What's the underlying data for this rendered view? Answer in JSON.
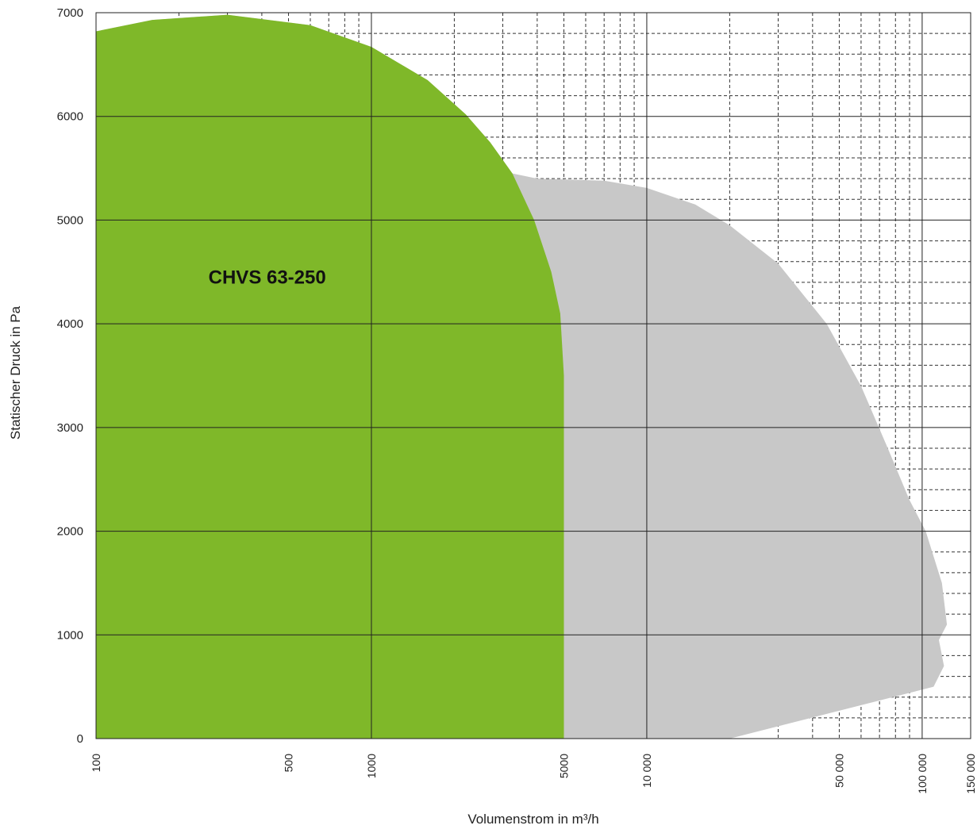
{
  "chart_data": {
    "type": "area",
    "xlabel": "Volumenstrom in m³/h",
    "ylabel": "Statischer Druck in Pa",
    "x_scale": "log",
    "xlim": [
      100,
      150000
    ],
    "ylim": [
      0,
      7000
    ],
    "grid": true,
    "y_ticks": [
      {
        "value": 0,
        "label": "0"
      },
      {
        "value": 1000,
        "label": "1000"
      },
      {
        "value": 2000,
        "label": "2000"
      },
      {
        "value": 3000,
        "label": "3000"
      },
      {
        "value": 4000,
        "label": "4000"
      },
      {
        "value": 5000,
        "label": "5000"
      },
      {
        "value": 6000,
        "label": "6000"
      },
      {
        "value": 7000,
        "label": "7000"
      }
    ],
    "x_ticks": [
      {
        "value": 100,
        "label": "100"
      },
      {
        "value": 500,
        "label": "500"
      },
      {
        "value": 1000,
        "label": "1000"
      },
      {
        "value": 5000,
        "label": "5000"
      },
      {
        "value": 10000,
        "label": "10 000"
      },
      {
        "value": 50000,
        "label": "50 000"
      },
      {
        "value": 100000,
        "label": "100 000"
      },
      {
        "value": 150000,
        "label": "150 000"
      }
    ],
    "series": [
      {
        "color": "#c8c8c8",
        "points": [
          [
            100,
            6820
          ],
          [
            160,
            6930
          ],
          [
            300,
            6980
          ],
          [
            600,
            6880
          ],
          [
            1000,
            6670
          ],
          [
            1600,
            6350
          ],
          [
            2200,
            6020
          ],
          [
            2700,
            5750
          ],
          [
            3250,
            5450
          ],
          [
            4000,
            5400
          ],
          [
            7000,
            5380
          ],
          [
            10000,
            5310
          ],
          [
            15000,
            5150
          ],
          [
            20000,
            4950
          ],
          [
            30000,
            4580
          ],
          [
            45000,
            4000
          ],
          [
            60000,
            3400
          ],
          [
            75000,
            2800
          ],
          [
            90000,
            2300
          ],
          [
            103000,
            2000
          ],
          [
            118000,
            1500
          ],
          [
            123000,
            1100
          ],
          [
            115000,
            950
          ],
          [
            120000,
            700
          ],
          [
            110000,
            500
          ],
          [
            20000,
            0
          ],
          [
            100,
            0
          ]
        ]
      },
      {
        "color": "#7fb829",
        "points": [
          [
            100,
            6820
          ],
          [
            160,
            6930
          ],
          [
            300,
            6980
          ],
          [
            600,
            6880
          ],
          [
            1000,
            6670
          ],
          [
            1600,
            6350
          ],
          [
            2200,
            6020
          ],
          [
            2700,
            5750
          ],
          [
            3250,
            5450
          ],
          [
            3900,
            5000
          ],
          [
            4500,
            4500
          ],
          [
            4850,
            4100
          ],
          [
            5000,
            3500
          ],
          [
            5000,
            0
          ],
          [
            100,
            0
          ]
        ]
      }
    ],
    "annotations": [
      {
        "text": "CHVS 63-250",
        "x": 450,
        "y": 4450
      }
    ]
  }
}
